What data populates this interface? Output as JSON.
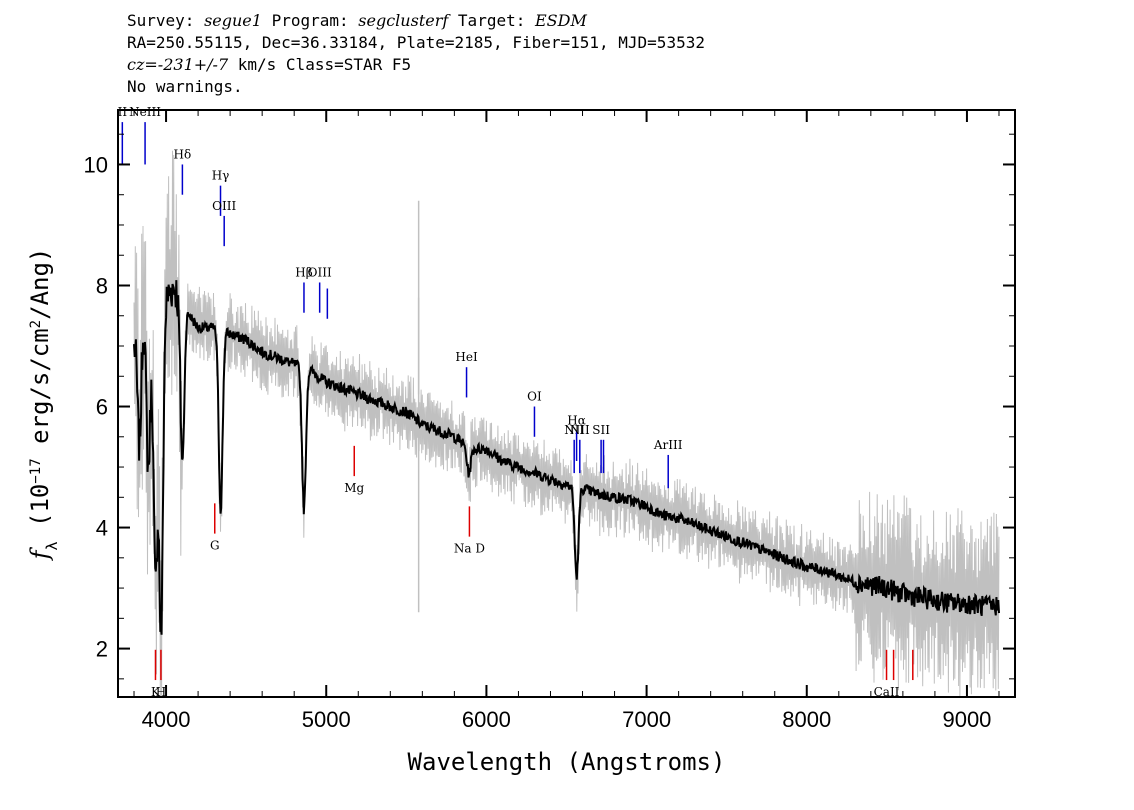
{
  "header": {
    "line1": {
      "survey_label": "Survey:",
      "survey": "segue1",
      "program_label": "Program:",
      "program": "segclusterf",
      "target_label": "Target:",
      "target": "ESDM"
    },
    "line2": "RA=250.55115, Dec=36.33184, Plate=2185, Fiber=151, MJD=53532",
    "line3": {
      "cz_label": "cz=",
      "cz_value": "-231+/-7",
      "cz_rest": " km/s Class=STAR F5"
    },
    "line4": "No warnings."
  },
  "chart_data": {
    "type": "line",
    "xlabel": "Wavelength (Angstroms)",
    "ylabel": "f_λ (10^-17 erg/s/cm²/Ang)",
    "ylabel_parts": {
      "f": "f",
      "sub": "λ",
      "pre": " (10",
      "sup": "−17",
      "mid": " erg/s/cm",
      "sup2": "2",
      "post": "/Ang)"
    },
    "xlim": [
      3700,
      9300
    ],
    "ylim": [
      1.2,
      10.9
    ],
    "x_ticks": [
      4000,
      5000,
      6000,
      7000,
      8000,
      9000
    ],
    "y_ticks": [
      2,
      4,
      6,
      8,
      10
    ],
    "grid": false,
    "colors": {
      "flux": "#000000",
      "error": "#c0c0c0",
      "emission": "#0000cc",
      "absorption": "#dd0000"
    },
    "series": [
      {
        "role": "flux",
        "x": [
          3800,
          3850,
          3900,
          3950,
          4000,
          4050,
          4100,
          4150,
          4200,
          4300,
          4400,
          4500,
          4600,
          4700,
          4800,
          4900,
          5000,
          5100,
          5200,
          5300,
          5400,
          5500,
          5600,
          5700,
          5800,
          5900,
          6000,
          6100,
          6200,
          6300,
          6400,
          6500,
          6600,
          6700,
          6800,
          6900,
          7000,
          7100,
          7200,
          7300,
          7400,
          7500,
          7600,
          7700,
          7800,
          7900,
          8000,
          8100,
          8200,
          8300,
          8400,
          8500,
          8600,
          8700,
          8800,
          8900,
          9000,
          9100,
          9200
        ],
        "y": [
          7.0,
          7.6,
          7.3,
          7.4,
          7.8,
          8.0,
          7.7,
          7.5,
          7.3,
          7.3,
          7.2,
          7.1,
          6.9,
          6.8,
          6.7,
          6.6,
          6.4,
          6.3,
          6.2,
          6.1,
          6.0,
          5.9,
          5.7,
          5.6,
          5.5,
          5.3,
          5.3,
          5.1,
          5.0,
          4.9,
          4.8,
          4.7,
          4.65,
          4.55,
          4.5,
          4.45,
          4.35,
          4.2,
          4.15,
          4.05,
          3.95,
          3.85,
          3.75,
          3.65,
          3.55,
          3.45,
          3.35,
          3.3,
          3.2,
          3.1,
          3.05,
          3.0,
          2.9,
          2.85,
          2.8,
          2.75,
          2.75,
          2.7,
          2.7
        ]
      }
    ],
    "absorption_dips": [
      {
        "x": 3834,
        "y": 5.4
      },
      {
        "x": 3889,
        "y": 5.0
      },
      {
        "x": 3934,
        "y": 3.1
      },
      {
        "x": 3969,
        "y": 2.2
      },
      {
        "x": 4102,
        "y": 5.1
      },
      {
        "x": 4341,
        "y": 4.3
      },
      {
        "x": 4861,
        "y": 4.3
      },
      {
        "x": 5890,
        "y": 4.9
      },
      {
        "x": 6563,
        "y": 3.2
      }
    ],
    "line_markers": [
      {
        "label": "II",
        "x": 3727,
        "y_top": 10.7,
        "y_bot": 10.0,
        "color": "emission"
      },
      {
        "label": "NeIII",
        "x": 3869,
        "y_top": 10.7,
        "y_bot": 10.0,
        "color": "emission"
      },
      {
        "label": "Hδ",
        "x": 4102,
        "y_top": 10.0,
        "y_bot": 9.5,
        "color": "emission"
      },
      {
        "label": "Hγ",
        "x": 4340,
        "y_top": 9.65,
        "y_bot": 9.15,
        "color": "emission"
      },
      {
        "label": "OIII",
        "x": 4363,
        "y_top": 9.15,
        "y_bot": 8.65,
        "color": "emission"
      },
      {
        "label": "Hβ",
        "x": 4861,
        "y_top": 8.05,
        "y_bot": 7.55,
        "color": "emission"
      },
      {
        "label": "OIII",
        "x": 4959,
        "y_top": 8.05,
        "y_bot": 7.55,
        "color": "emission"
      },
      {
        "label": "",
        "x": 5007,
        "y_top": 7.95,
        "y_bot": 7.45,
        "color": "emission"
      },
      {
        "label": "HeI",
        "x": 5876,
        "y_top": 6.65,
        "y_bot": 6.15,
        "color": "emission"
      },
      {
        "label": "OI",
        "x": 6300,
        "y_top": 6.0,
        "y_bot": 5.5,
        "color": "emission"
      },
      {
        "label": "NII",
        "x": 6548,
        "y_top": 5.45,
        "y_bot": 4.9,
        "color": "emission"
      },
      {
        "label": "Hα",
        "x": 6563,
        "y_top": 5.6,
        "y_bot": 5.1,
        "color": "emission"
      },
      {
        "label": "NII",
        "x": 6583,
        "y_top": 5.45,
        "y_bot": 4.9,
        "color": "emission"
      },
      {
        "label": "SII",
        "x": 6716,
        "y_top": 5.45,
        "y_bot": 4.9,
        "color": "emission"
      },
      {
        "label": "",
        "x": 6731,
        "y_top": 5.45,
        "y_bot": 4.9,
        "color": "emission"
      },
      {
        "label": "ArIII",
        "x": 7135,
        "y_top": 5.2,
        "y_bot": 4.65,
        "color": "emission"
      },
      {
        "label": "G",
        "x": 4304,
        "y_top": 4.4,
        "y_bot": 3.9,
        "color": "absorption"
      },
      {
        "label": "Mg",
        "x": 5175,
        "y_top": 5.35,
        "y_bot": 4.85,
        "color": "absorption"
      },
      {
        "label": "Na D",
        "x": 5894,
        "y_top": 4.35,
        "y_bot": 3.85,
        "color": "absorption"
      },
      {
        "label": "K",
        "x": 3934,
        "y_top": 1.98,
        "y_bot": 1.48,
        "color": "absorption"
      },
      {
        "label": "H",
        "x": 3968,
        "y_top": 1.98,
        "y_bot": 1.48,
        "color": "absorption"
      },
      {
        "label": "CaII",
        "x": 8498,
        "y_top": 1.98,
        "y_bot": 1.48,
        "color": "absorption"
      },
      {
        "label": "",
        "x": 8542,
        "y_top": 1.98,
        "y_bot": 1.48,
        "color": "absorption"
      },
      {
        "label": "",
        "x": 8662,
        "y_top": 1.98,
        "y_bot": 1.48,
        "color": "absorption"
      }
    ],
    "sky_spikes": [
      {
        "x": 5577,
        "y_top": 9.4,
        "y_bot": 2.6
      },
      {
        "x": 5577,
        "y_top": 7.8,
        "y_bot": 6.2
      }
    ]
  }
}
